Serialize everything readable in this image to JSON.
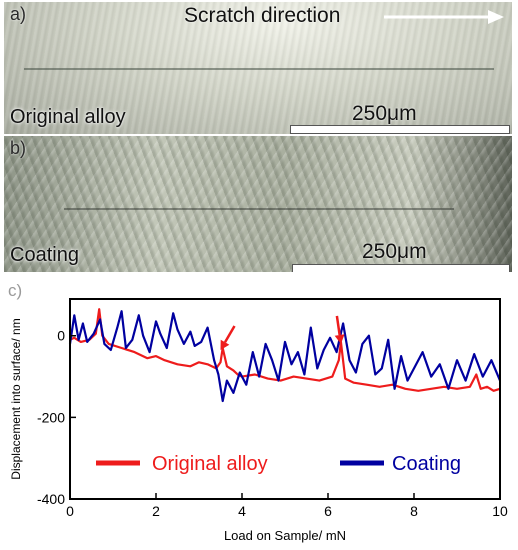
{
  "panel_a": {
    "letter": "a)",
    "direction_label": "Scratch direction",
    "label": "Original alloy",
    "scale": "250μm"
  },
  "panel_b": {
    "letter": "b)",
    "label": "Coating",
    "scale": "250μm"
  },
  "colors": {
    "original_alloy": "#ee1c1c",
    "coating": "#0000a0",
    "axes": "#000000"
  },
  "chart_data": {
    "type": "line",
    "panel_letter": "c)",
    "xlabel": "Load on Sample/ mN",
    "ylabel": "Displacement into surface/ nm",
    "xlim": [
      0,
      10
    ],
    "ylim": [
      -400,
      90
    ],
    "x_ticks": [
      0,
      2,
      4,
      6,
      8,
      10
    ],
    "y_ticks": [
      0,
      -200,
      -400
    ],
    "legend_placement": "lower-center",
    "annotations": [
      {
        "type": "arrow",
        "target_x": 3.5,
        "target_y": -35
      },
      {
        "type": "arrow",
        "target_x": 6.3,
        "target_y": -20
      }
    ],
    "series": [
      {
        "name": "Original alloy",
        "x": [
          0.0,
          0.1,
          0.25,
          0.45,
          0.6,
          0.68,
          0.75,
          0.9,
          1.2,
          1.5,
          1.8,
          2.0,
          2.2,
          2.5,
          2.8,
          3.0,
          3.2,
          3.4,
          3.5,
          3.55,
          3.65,
          3.8,
          3.9,
          4.0,
          4.3,
          4.6,
          4.9,
          5.2,
          5.5,
          5.8,
          6.1,
          6.25,
          6.3,
          6.4,
          6.6,
          6.9,
          7.2,
          7.5,
          7.8,
          8.1,
          8.4,
          8.7,
          9.0,
          9.3,
          9.45,
          9.55,
          9.7,
          9.85,
          10.0
        ],
        "y": [
          -10,
          -5,
          -15,
          -10,
          5,
          65,
          0,
          -20,
          -30,
          -40,
          -55,
          -50,
          -60,
          -70,
          -75,
          -65,
          -70,
          -80,
          -65,
          -30,
          -75,
          -85,
          -95,
          -100,
          -95,
          -105,
          -110,
          -100,
          -105,
          -110,
          -100,
          -60,
          -15,
          -105,
          -115,
          -120,
          -125,
          -120,
          -130,
          -135,
          -130,
          -125,
          -130,
          -125,
          -95,
          -130,
          -125,
          -135,
          -130
        ]
      },
      {
        "name": "Coating",
        "x": [
          0.0,
          0.1,
          0.2,
          0.3,
          0.4,
          0.55,
          0.7,
          0.8,
          0.95,
          1.1,
          1.2,
          1.3,
          1.45,
          1.6,
          1.7,
          1.85,
          2.0,
          2.1,
          2.25,
          2.4,
          2.5,
          2.65,
          2.8,
          2.9,
          3.05,
          3.2,
          3.35,
          3.45,
          3.55,
          3.65,
          3.8,
          3.95,
          4.1,
          4.25,
          4.4,
          4.55,
          4.7,
          4.85,
          5.0,
          5.15,
          5.3,
          5.45,
          5.6,
          5.75,
          5.9,
          6.05,
          6.2,
          6.35,
          6.5,
          6.65,
          6.8,
          6.95,
          7.1,
          7.25,
          7.4,
          7.55,
          7.7,
          7.85,
          8.0,
          8.2,
          8.4,
          8.6,
          8.8,
          9.0,
          9.2,
          9.4,
          9.6,
          9.8,
          10.0
        ],
        "y": [
          -20,
          50,
          -10,
          30,
          -15,
          5,
          40,
          -20,
          -35,
          20,
          60,
          -30,
          -10,
          50,
          0,
          -40,
          35,
          5,
          -30,
          55,
          15,
          -20,
          10,
          -25,
          -15,
          20,
          -60,
          -95,
          -160,
          -110,
          -140,
          -90,
          -120,
          -40,
          -100,
          -20,
          -60,
          -110,
          -15,
          -70,
          -40,
          -95,
          20,
          -80,
          -35,
          -5,
          -40,
          30,
          -60,
          -90,
          -20,
          0,
          -95,
          -80,
          -10,
          -130,
          -50,
          -110,
          -80,
          -40,
          -100,
          -70,
          -130,
          -60,
          -110,
          -45,
          -100,
          -60,
          -110
        ]
      }
    ]
  }
}
